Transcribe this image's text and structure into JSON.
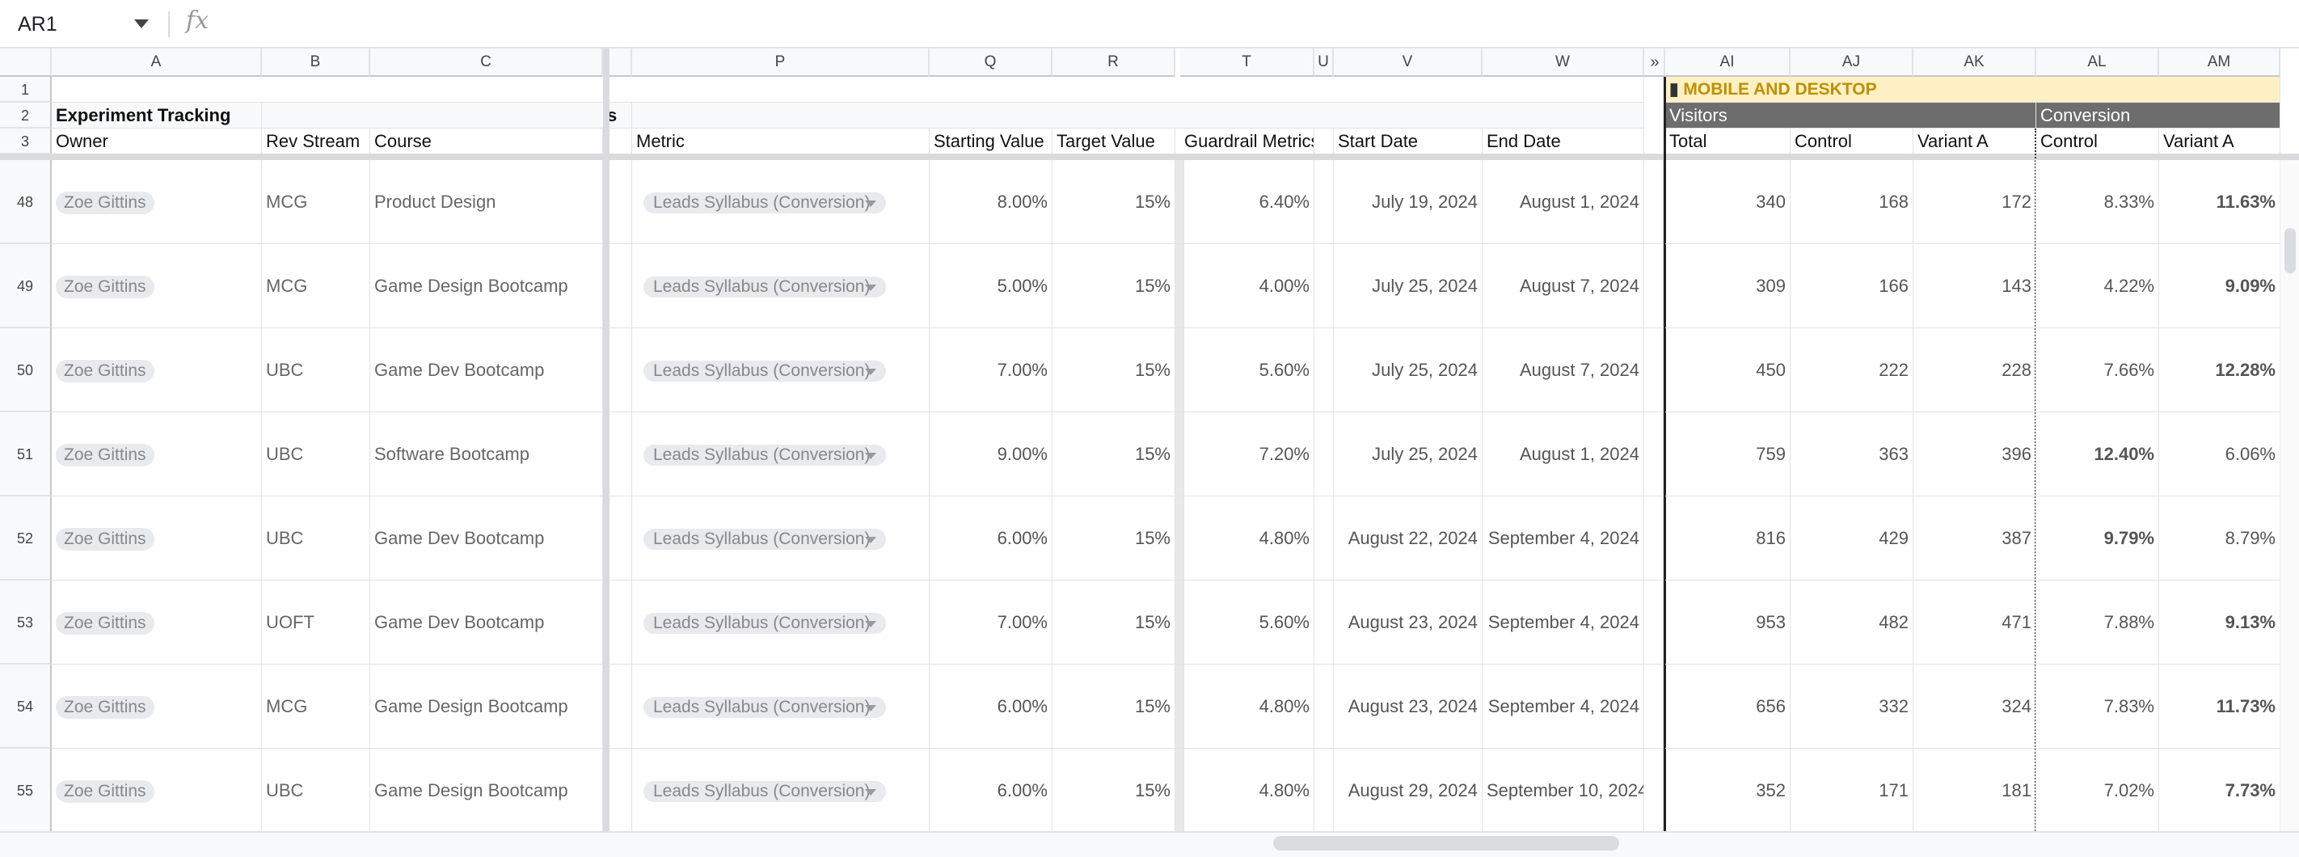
{
  "formula_bar": {
    "name_box": "AR1",
    "fx_label": "fx",
    "formula": ""
  },
  "columns": [
    {
      "id": "corner",
      "label": ""
    },
    {
      "id": "A",
      "label": "A"
    },
    {
      "id": "B",
      "label": "B"
    },
    {
      "id": "C",
      "label": "C"
    },
    {
      "id": "P",
      "label": "P"
    },
    {
      "id": "Q",
      "label": "Q"
    },
    {
      "id": "R",
      "label": "R"
    },
    {
      "id": "T",
      "label": "T"
    },
    {
      "id": "U",
      "label": "U"
    },
    {
      "id": "V",
      "label": "V"
    },
    {
      "id": "W",
      "label": "W"
    },
    {
      "id": "AI",
      "label": "AI"
    },
    {
      "id": "AJ",
      "label": "AJ"
    },
    {
      "id": "AK",
      "label": "AK"
    },
    {
      "id": "AL",
      "label": "AL"
    },
    {
      "id": "AM",
      "label": "AM"
    }
  ],
  "frozen_rows": {
    "row_numbers": [
      "1",
      "2",
      "3"
    ],
    "title": "Experiment Tracking",
    "title_overflow_tail": "s",
    "section_label": "MOBILE AND DESKTOP",
    "visitors_label": "Visitors",
    "conversion_label": "Conversion",
    "headers": {
      "owner": "Owner",
      "rev_stream": "Rev Stream",
      "course": "Course",
      "metric": "Metric",
      "starting_value": "Starting Value",
      "target_value": "Target Value",
      "guardrail": "Guardrail Metrics",
      "start_date": "Start Date",
      "end_date": "End Date",
      "total": "Total",
      "control": "Control",
      "variant_a": "Variant A",
      "conv_control": "Control",
      "conv_variant_a": "Variant A"
    }
  },
  "rows": [
    {
      "row": "48",
      "owner": "Zoe Gittins",
      "rev": "MCG",
      "course": "Product Design",
      "metric": "Leads Syllabus (Conversion)",
      "start_val": "8.00%",
      "target": "15%",
      "guard": "6.40%",
      "start_date": "July 19, 2024",
      "end_date": "August 1, 2024",
      "total": "340",
      "control": "168",
      "variant": "172",
      "conv_control": "8.33%",
      "conv_variant": "11.63%",
      "winner": "variant"
    },
    {
      "row": "49",
      "owner": "Zoe Gittins",
      "rev": "MCG",
      "course": "Game Design Bootcamp",
      "metric": "Leads Syllabus (Conversion)",
      "start_val": "5.00%",
      "target": "15%",
      "guard": "4.00%",
      "start_date": "July 25, 2024",
      "end_date": "August 7, 2024",
      "total": "309",
      "control": "166",
      "variant": "143",
      "conv_control": "4.22%",
      "conv_variant": "9.09%",
      "winner": "variant"
    },
    {
      "row": "50",
      "owner": "Zoe Gittins",
      "rev": "UBC",
      "course": "Game Dev Bootcamp",
      "metric": "Leads Syllabus (Conversion)",
      "start_val": "7.00%",
      "target": "15%",
      "guard": "5.60%",
      "start_date": "July 25, 2024",
      "end_date": "August 7, 2024",
      "total": "450",
      "control": "222",
      "variant": "228",
      "conv_control": "7.66%",
      "conv_variant": "12.28%",
      "winner": "variant"
    },
    {
      "row": "51",
      "owner": "Zoe Gittins",
      "rev": "UBC",
      "course": "Software Bootcamp",
      "metric": "Leads Syllabus (Conversion)",
      "start_val": "9.00%",
      "target": "15%",
      "guard": "7.20%",
      "start_date": "July 25, 2024",
      "end_date": "August 1, 2024",
      "total": "759",
      "control": "363",
      "variant": "396",
      "conv_control": "12.40%",
      "conv_variant": "6.06%",
      "winner": "control"
    },
    {
      "row": "52",
      "owner": "Zoe Gittins",
      "rev": "UBC",
      "course": "Game Dev Bootcamp",
      "metric": "Leads Syllabus (Conversion)",
      "start_val": "6.00%",
      "target": "15%",
      "guard": "4.80%",
      "start_date": "August 22, 2024",
      "end_date": "September 4, 2024",
      "total": "816",
      "control": "429",
      "variant": "387",
      "conv_control": "9.79%",
      "conv_variant": "8.79%",
      "winner": "control"
    },
    {
      "row": "53",
      "owner": "Zoe Gittins",
      "rev": "UOFT",
      "course": "Game Dev Bootcamp",
      "metric": "Leads Syllabus (Conversion)",
      "start_val": "7.00%",
      "target": "15%",
      "guard": "5.60%",
      "start_date": "August 23, 2024",
      "end_date": "September 4, 2024",
      "total": "953",
      "control": "482",
      "variant": "471",
      "conv_control": "7.88%",
      "conv_variant": "9.13%",
      "winner": "variant"
    },
    {
      "row": "54",
      "owner": "Zoe Gittins",
      "rev": "MCG",
      "course": "Game Design Bootcamp",
      "metric": "Leads Syllabus (Conversion)",
      "start_val": "6.00%",
      "target": "15%",
      "guard": "4.80%",
      "start_date": "August 23, 2024",
      "end_date": "September 4, 2024",
      "total": "656",
      "control": "332",
      "variant": "324",
      "conv_control": "7.83%",
      "conv_variant": "11.73%",
      "winner": "variant"
    },
    {
      "row": "55",
      "owner": "Zoe Gittins",
      "rev": "UBC",
      "course": "Game Design Bootcamp",
      "metric": "Leads Syllabus (Conversion)",
      "start_val": "6.00%",
      "target": "15%",
      "guard": "4.80%",
      "start_date": "August 29, 2024",
      "end_date": "September 10, 2024",
      "total": "352",
      "control": "171",
      "variant": "181",
      "conv_control": "7.02%",
      "conv_variant": "7.73%",
      "winner": "variant"
    }
  ],
  "icons": {
    "section_icon": "mobile-phone-icon",
    "expand_icon": "expand-arrows-icon"
  }
}
